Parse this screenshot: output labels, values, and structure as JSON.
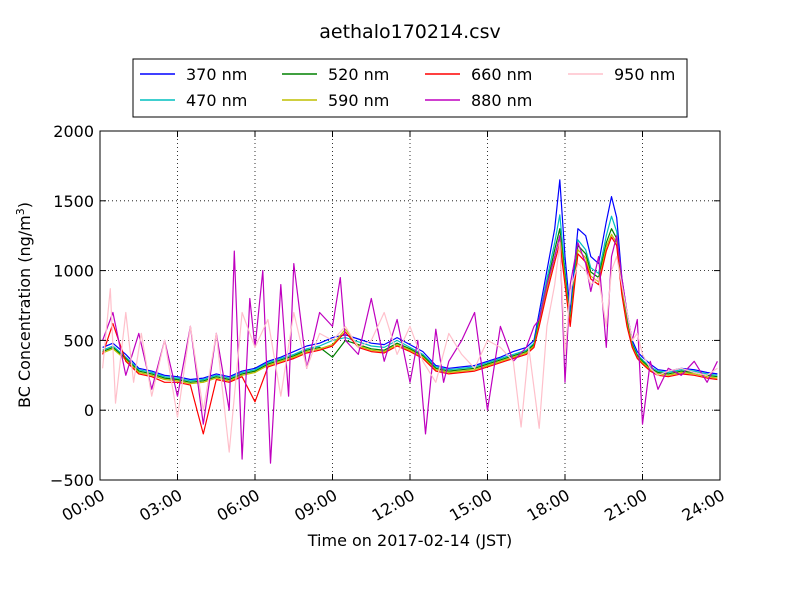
{
  "chart_data": {
    "type": "line",
    "title": "aethalo170214.csv",
    "xlabel": "Time on 2017-02-14 (JST)",
    "ylabel_main": "BC Concentration (ng/m",
    "ylabel_sup": "3",
    "ylabel_close": ")",
    "xlim": [
      0,
      24
    ],
    "ylim": [
      -500,
      2000
    ],
    "x_unit": "hours since 00:00 JST",
    "x_ticks": [
      0,
      3,
      6,
      9,
      12,
      15,
      18,
      21,
      24
    ],
    "x_tick_labels": [
      "00:00",
      "03:00",
      "06:00",
      "09:00",
      "12:00",
      "15:00",
      "18:00",
      "21:00",
      "24:00"
    ],
    "y_ticks": [
      -500,
      0,
      500,
      1000,
      1500,
      2000
    ],
    "y_tick_labels": [
      "−500",
      "0",
      "500",
      "1000",
      "1500",
      "2000"
    ],
    "grid": true,
    "legend_position": "top, outside plot",
    "series": [
      {
        "name": "370 nm",
        "color": "#0000ff",
        "x": [
          0.1,
          0.5,
          1.0,
          1.5,
          2.0,
          2.5,
          3.0,
          3.5,
          4.0,
          4.5,
          5.0,
          5.5,
          6.0,
          6.5,
          7.0,
          7.5,
          8.0,
          8.5,
          9.0,
          9.5,
          10.0,
          10.5,
          11.0,
          11.5,
          12.0,
          12.5,
          13.0,
          13.5,
          14.0,
          14.5,
          15.0,
          15.5,
          16.0,
          16.5,
          16.8,
          17.0,
          17.3,
          17.6,
          17.8,
          18.0,
          18.2,
          18.5,
          18.8,
          19.0,
          19.3,
          19.6,
          19.8,
          20.0,
          20.2,
          20.4,
          20.6,
          20.8,
          21.0,
          21.3,
          21.6,
          22.0,
          22.5,
          23.0,
          23.5,
          23.9
        ],
        "y": [
          450,
          480,
          400,
          300,
          280,
          250,
          240,
          220,
          230,
          260,
          240,
          280,
          300,
          350,
          380,
          420,
          460,
          480,
          520,
          540,
          510,
          480,
          470,
          520,
          470,
          420,
          320,
          300,
          310,
          320,
          350,
          380,
          420,
          450,
          500,
          700,
          1000,
          1300,
          1650,
          1100,
          700,
          1300,
          1250,
          1100,
          1050,
          1350,
          1530,
          1380,
          950,
          700,
          500,
          420,
          380,
          330,
          290,
          280,
          300,
          290,
          270,
          260
        ]
      },
      {
        "name": "470 nm",
        "color": "#00bfbf",
        "x": [
          0.1,
          0.5,
          1.0,
          1.5,
          2.0,
          2.5,
          3.0,
          3.5,
          4.0,
          4.5,
          5.0,
          5.5,
          6.0,
          6.5,
          7.0,
          7.5,
          8.0,
          8.5,
          9.0,
          9.5,
          10.0,
          10.5,
          11.0,
          11.5,
          12.0,
          12.5,
          13.0,
          13.5,
          14.0,
          14.5,
          15.0,
          15.5,
          16.0,
          16.5,
          16.8,
          17.0,
          17.3,
          17.6,
          17.8,
          18.0,
          18.2,
          18.5,
          18.8,
          19.0,
          19.3,
          19.6,
          19.8,
          20.0,
          20.2,
          20.4,
          20.6,
          20.8,
          21.0,
          21.3,
          21.6,
          22.0,
          22.5,
          23.0,
          23.5,
          23.9
        ],
        "y": [
          430,
          460,
          380,
          290,
          270,
          240,
          230,
          210,
          220,
          250,
          230,
          270,
          290,
          340,
          370,
          400,
          440,
          460,
          500,
          520,
          490,
          460,
          450,
          500,
          450,
          400,
          310,
          290,
          300,
          310,
          340,
          370,
          400,
          430,
          480,
          660,
          940,
          1200,
          1400,
          1000,
          660,
          1220,
          1150,
          1020,
          980,
          1250,
          1390,
          1280,
          900,
          660,
          480,
          400,
          360,
          310,
          280,
          270,
          290,
          280,
          260,
          250
        ]
      },
      {
        "name": "520 nm",
        "color": "#008000",
        "x": [
          0.1,
          0.5,
          1.0,
          1.5,
          2.0,
          2.5,
          3.0,
          3.5,
          4.0,
          4.5,
          5.0,
          5.5,
          6.0,
          6.5,
          7.0,
          7.5,
          8.0,
          8.5,
          9.0,
          9.5,
          10.0,
          10.5,
          11.0,
          11.5,
          12.0,
          12.5,
          13.0,
          13.5,
          14.0,
          14.5,
          15.0,
          15.5,
          16.0,
          16.5,
          16.8,
          17.0,
          17.3,
          17.6,
          17.8,
          18.0,
          18.2,
          18.5,
          18.8,
          19.0,
          19.3,
          19.6,
          19.8,
          20.0,
          20.2,
          20.4,
          20.6,
          20.8,
          21.0,
          21.3,
          21.6,
          22.0,
          22.5,
          23.0,
          23.5,
          23.9
        ],
        "y": [
          420,
          450,
          370,
          280,
          260,
          230,
          220,
          200,
          210,
          240,
          220,
          260,
          280,
          330,
          360,
          390,
          430,
          450,
          380,
          500,
          470,
          440,
          430,
          480,
          440,
          390,
          300,
          280,
          290,
          300,
          330,
          360,
          390,
          420,
          470,
          640,
          900,
          1150,
          1300,
          960,
          640,
          1180,
          1120,
          990,
          950,
          1200,
          1300,
          1230,
          870,
          640,
          470,
          390,
          350,
          300,
          270,
          260,
          280,
          270,
          250,
          240
        ]
      },
      {
        "name": "590 nm",
        "color": "#bfbf00",
        "x": [
          0.1,
          0.5,
          1.0,
          1.5,
          2.0,
          2.5,
          3.0,
          3.5,
          4.0,
          4.5,
          5.0,
          5.5,
          6.0,
          6.5,
          7.0,
          7.5,
          8.0,
          8.5,
          9.0,
          9.5,
          10.0,
          10.5,
          11.0,
          11.5,
          12.0,
          12.5,
          13.0,
          13.5,
          14.0,
          14.5,
          15.0,
          15.5,
          16.0,
          16.5,
          16.8,
          17.0,
          17.3,
          17.6,
          17.8,
          18.0,
          18.2,
          18.5,
          18.8,
          19.0,
          19.3,
          19.6,
          19.8,
          20.0,
          20.2,
          20.4,
          20.6,
          20.8,
          21.0,
          21.3,
          21.6,
          22.0,
          22.5,
          23.0,
          23.5,
          23.9
        ],
        "y": [
          410,
          440,
          360,
          270,
          250,
          220,
          210,
          190,
          200,
          230,
          210,
          250,
          270,
          320,
          350,
          380,
          420,
          440,
          470,
          580,
          460,
          430,
          420,
          470,
          430,
          380,
          290,
          270,
          280,
          290,
          320,
          350,
          380,
          410,
          460,
          620,
          870,
          1100,
          1250,
          930,
          620,
          1150,
          1090,
          960,
          920,
          1170,
          1260,
          1200,
          850,
          620,
          460,
          380,
          340,
          290,
          260,
          250,
          270,
          260,
          240,
          230
        ]
      },
      {
        "name": "660 nm",
        "color": "#ff0000",
        "x": [
          0.1,
          0.5,
          1.0,
          1.5,
          2.0,
          2.5,
          3.0,
          3.5,
          4.0,
          4.5,
          5.0,
          5.5,
          6.0,
          6.5,
          7.0,
          7.5,
          8.0,
          8.5,
          9.0,
          9.5,
          10.0,
          10.5,
          11.0,
          11.5,
          12.0,
          12.5,
          13.0,
          13.5,
          14.0,
          14.5,
          15.0,
          15.5,
          16.0,
          16.5,
          16.8,
          17.0,
          17.3,
          17.6,
          17.8,
          18.0,
          18.2,
          18.5,
          18.8,
          19.0,
          19.3,
          19.6,
          19.8,
          20.0,
          20.2,
          20.4,
          20.6,
          20.8,
          21.0,
          21.3,
          21.6,
          22.0,
          22.5,
          23.0,
          23.5,
          23.9
        ],
        "y": [
          400,
          620,
          350,
          260,
          240,
          200,
          200,
          180,
          -170,
          220,
          200,
          240,
          60,
          310,
          340,
          370,
          410,
          430,
          460,
          560,
          450,
          420,
          410,
          460,
          420,
          370,
          280,
          260,
          270,
          280,
          310,
          340,
          370,
          400,
          450,
          600,
          840,
          1060,
          1200,
          900,
          600,
          1120,
          1060,
          940,
          900,
          1140,
          1240,
          1180,
          830,
          600,
          450,
          370,
          330,
          280,
          250,
          240,
          260,
          250,
          230,
          220
        ]
      },
      {
        "name": "880 nm",
        "color": "#bf00bf",
        "x": [
          0.1,
          0.5,
          1.0,
          1.5,
          2.0,
          2.5,
          3.0,
          3.5,
          4.0,
          4.5,
          5.0,
          5.2,
          5.5,
          5.8,
          6.0,
          6.3,
          6.6,
          7.0,
          7.3,
          7.5,
          8.0,
          8.5,
          9.0,
          9.3,
          9.5,
          10.0,
          10.5,
          11.0,
          11.5,
          12.0,
          12.3,
          12.6,
          13.0,
          13.3,
          13.5,
          14.0,
          14.5,
          15.0,
          15.5,
          16.0,
          16.5,
          16.8,
          17.0,
          17.3,
          17.6,
          17.8,
          18.0,
          18.2,
          18.5,
          18.8,
          19.0,
          19.3,
          19.6,
          19.8,
          20.0,
          20.2,
          20.4,
          20.6,
          20.8,
          21.0,
          21.3,
          21.6,
          22.0,
          22.5,
          23.0,
          23.5,
          23.9
        ],
        "y": [
          500,
          700,
          250,
          550,
          150,
          500,
          100,
          600,
          -100,
          550,
          0,
          1140,
          -350,
          800,
          450,
          1000,
          -380,
          900,
          100,
          1050,
          300,
          700,
          600,
          950,
          500,
          400,
          800,
          350,
          650,
          200,
          500,
          -170,
          580,
          200,
          350,
          500,
          700,
          0,
          600,
          350,
          450,
          600,
          650,
          900,
          1100,
          1250,
          200,
          900,
          1200,
          1050,
          850,
          1100,
          450,
          1100,
          1250,
          950,
          700,
          500,
          650,
          -100,
          350,
          150,
          300,
          250,
          350,
          200,
          350
        ]
      },
      {
        "name": "950 nm",
        "color": "#ffc0cb",
        "x": [
          0.1,
          0.4,
          0.6,
          1.0,
          1.3,
          1.6,
          2.0,
          2.5,
          3.0,
          3.5,
          4.0,
          4.5,
          5.0,
          5.5,
          6.0,
          6.5,
          7.0,
          7.5,
          8.0,
          8.5,
          9.0,
          9.5,
          10.0,
          10.5,
          11.0,
          11.5,
          12.0,
          12.5,
          13.0,
          13.5,
          14.0,
          14.5,
          15.0,
          15.5,
          16.0,
          16.3,
          16.6,
          17.0,
          17.3,
          17.6,
          17.8,
          18.0,
          18.2,
          18.5,
          18.8,
          19.0,
          19.3,
          19.6,
          19.8,
          20.0,
          20.2,
          20.4,
          20.6,
          20.8,
          21.0,
          21.3,
          21.6,
          22.0,
          22.5,
          23.0,
          23.5,
          23.9
        ],
        "y": [
          300,
          870,
          50,
          700,
          200,
          550,
          100,
          500,
          -50,
          600,
          0,
          550,
          -300,
          700,
          450,
          650,
          100,
          700,
          300,
          550,
          500,
          600,
          450,
          500,
          700,
          400,
          600,
          350,
          200,
          550,
          400,
          300,
          500,
          450,
          350,
          -120,
          450,
          -130,
          600,
          900,
          1200,
          400,
          850,
          1050,
          1000,
          900,
          950,
          600,
          1000,
          1100,
          900,
          700,
          500,
          550,
          400,
          300,
          250,
          280,
          300,
          270,
          250,
          300
        ]
      }
    ]
  }
}
